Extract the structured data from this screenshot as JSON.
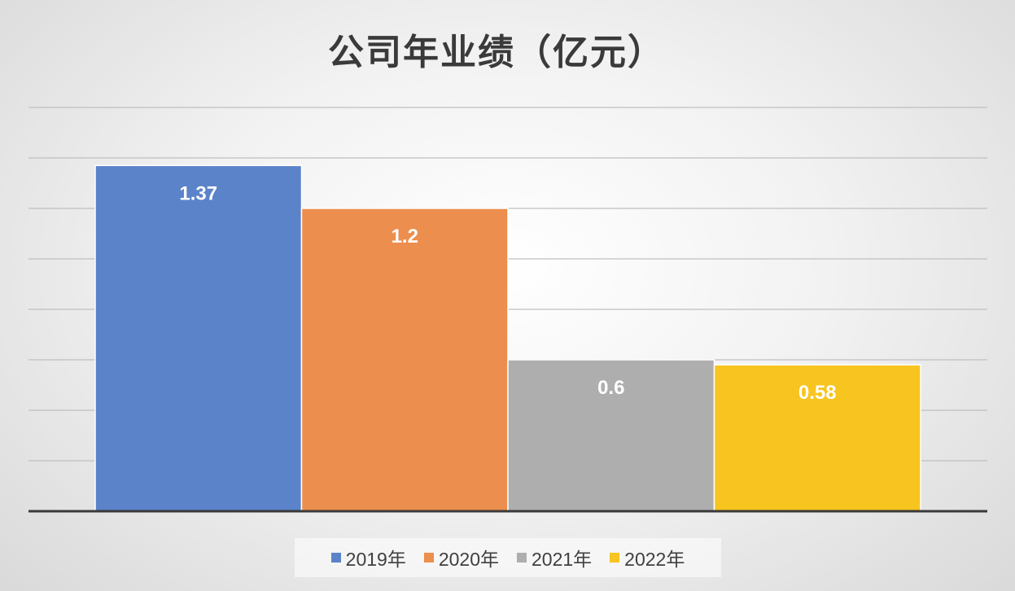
{
  "chart_data": {
    "type": "bar",
    "title": "公司年业绩（亿元）",
    "categories": [
      "2019年",
      "2020年",
      "2021年",
      "2022年"
    ],
    "values": [
      1.37,
      1.2,
      0.6,
      0.58
    ],
    "data_labels": [
      "1.37",
      "1.2",
      "0.6",
      "0.58"
    ],
    "colors": [
      "#5b83c9",
      "#ec8e4d",
      "#aeaeae",
      "#f8c41f"
    ],
    "ylim": [
      0,
      1.6
    ],
    "y_gridlines": [
      0.2,
      0.4,
      0.6,
      0.8,
      1.0,
      1.2,
      1.4,
      1.6
    ],
    "grid": true,
    "xlabel": "",
    "ylabel": "",
    "legend": {
      "position": "bottom",
      "items": [
        "2019年",
        "2020年",
        "2021年",
        "2022年"
      ]
    }
  }
}
